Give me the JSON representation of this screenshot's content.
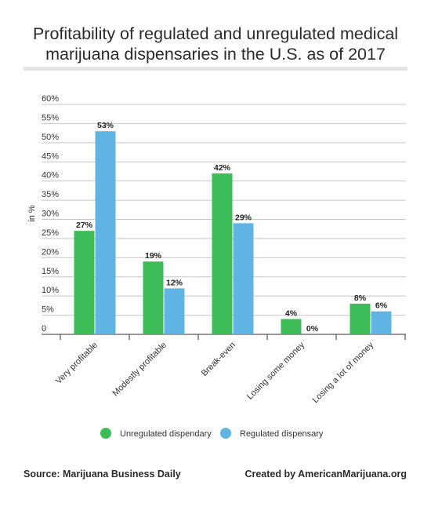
{
  "title": "Profitability of regulated and unregulated medical marijuana dispensaries in the U.S. as of 2017",
  "source": "Source: Marijuana Business Daily",
  "credit": "Created by AmericanMarijuana.org",
  "colors": {
    "unregulated": "#3dbd58",
    "regulated": "#5fb4e4",
    "grid": "#c8c8c8",
    "axis": "#333333"
  },
  "chart_data": {
    "type": "bar",
    "title": "Profitability of regulated and unregulated medical marijuana dispensaries in the U.S. as of 2017",
    "xlabel": "",
    "ylabel": "in %",
    "ylim": [
      0,
      60
    ],
    "yticks": [
      0,
      5,
      10,
      15,
      20,
      25,
      30,
      35,
      40,
      45,
      50,
      55,
      60
    ],
    "ytick_labels": [
      "0",
      "5%",
      "10%",
      "15%",
      "20%",
      "25%",
      "30%",
      "35%",
      "40%",
      "45%",
      "50%",
      "55%",
      "60%"
    ],
    "grid": true,
    "legend_position": "bottom-center",
    "categories": [
      "Very profitable",
      "Modestly profitable",
      "Break-even",
      "Losing some money",
      "Losing a lot of money"
    ],
    "series": [
      {
        "name": "Unregulated dispendary",
        "values": [
          27,
          19,
          42,
          4,
          8
        ],
        "labels": [
          "27%",
          "19%",
          "42%",
          "4%",
          "8%"
        ],
        "color": "#3dbd58"
      },
      {
        "name": "Regulated dispensary",
        "values": [
          53,
          12,
          29,
          0,
          6
        ],
        "labels": [
          "53%",
          "12%",
          "29%",
          "0%",
          "6%"
        ],
        "color": "#5fb4e4"
      }
    ]
  }
}
